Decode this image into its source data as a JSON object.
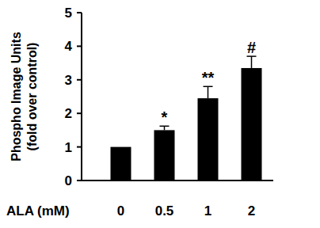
{
  "chart_data": {
    "type": "bar",
    "y_label": [
      "Phospho Image Units",
      "(fold over control)"
    ],
    "x_label": "ALA (mM)",
    "categories": [
      "0",
      "0.5",
      "1",
      "2"
    ],
    "values": [
      1,
      1.5,
      2.45,
      3.35
    ],
    "errors": [
      0,
      0.12,
      0.35,
      0.35
    ],
    "annotations": [
      {
        "category": "0.5",
        "text": "*"
      },
      {
        "category": "1",
        "text": "**"
      },
      {
        "category": "2",
        "text": "#"
      }
    ],
    "color": "#000000",
    "ylim": [
      0,
      5
    ],
    "yticks": [
      0,
      1,
      2,
      3,
      4,
      5
    ],
    "grid": false
  }
}
